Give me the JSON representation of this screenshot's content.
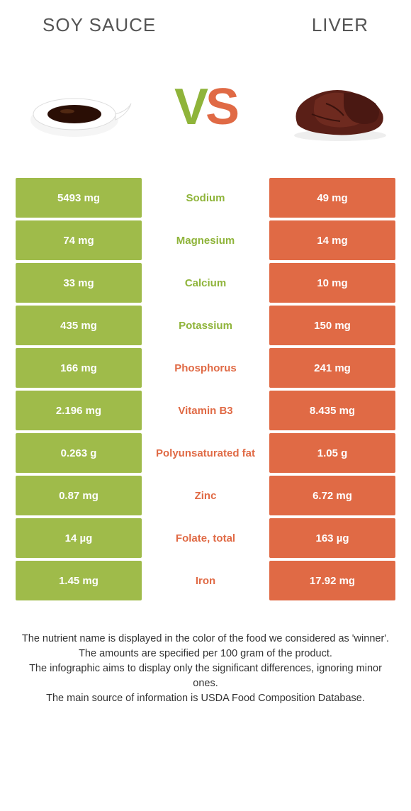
{
  "header": {
    "left_title": "SOY SAUCE",
    "right_title": "LIVER"
  },
  "vs": {
    "v": "V",
    "s": "S"
  },
  "colors": {
    "green": "#8fb43a",
    "green_bg": "#9fbb4a",
    "orange": "#e06a45",
    "text_gray": "#555"
  },
  "rows": [
    {
      "left": "5493 mg",
      "label": "Sodium",
      "right": "49 mg",
      "winner": "green"
    },
    {
      "left": "74 mg",
      "label": "Magnesium",
      "right": "14 mg",
      "winner": "green"
    },
    {
      "left": "33 mg",
      "label": "Calcium",
      "right": "10 mg",
      "winner": "green"
    },
    {
      "left": "435 mg",
      "label": "Potassium",
      "right": "150 mg",
      "winner": "green"
    },
    {
      "left": "166 mg",
      "label": "Phosphorus",
      "right": "241 mg",
      "winner": "orange"
    },
    {
      "left": "2.196 mg",
      "label": "Vitamin B3",
      "right": "8.435 mg",
      "winner": "orange"
    },
    {
      "left": "0.263 g",
      "label": "Polyunsaturated fat",
      "right": "1.05 g",
      "winner": "orange"
    },
    {
      "left": "0.87 mg",
      "label": "Zinc",
      "right": "6.72 mg",
      "winner": "orange"
    },
    {
      "left": "14 µg",
      "label": "Folate, total",
      "right": "163 µg",
      "winner": "orange"
    },
    {
      "left": "1.45 mg",
      "label": "Iron",
      "right": "17.92 mg",
      "winner": "orange"
    }
  ],
  "footer": {
    "line1": "The nutrient name is displayed in the color of the food we considered as 'winner'.",
    "line2": "The amounts are specified per 100 gram of the product.",
    "line3": "The infographic aims to display only the significant differences, ignoring minor ones.",
    "line4": "The main source of information is USDA Food Composition Database."
  }
}
